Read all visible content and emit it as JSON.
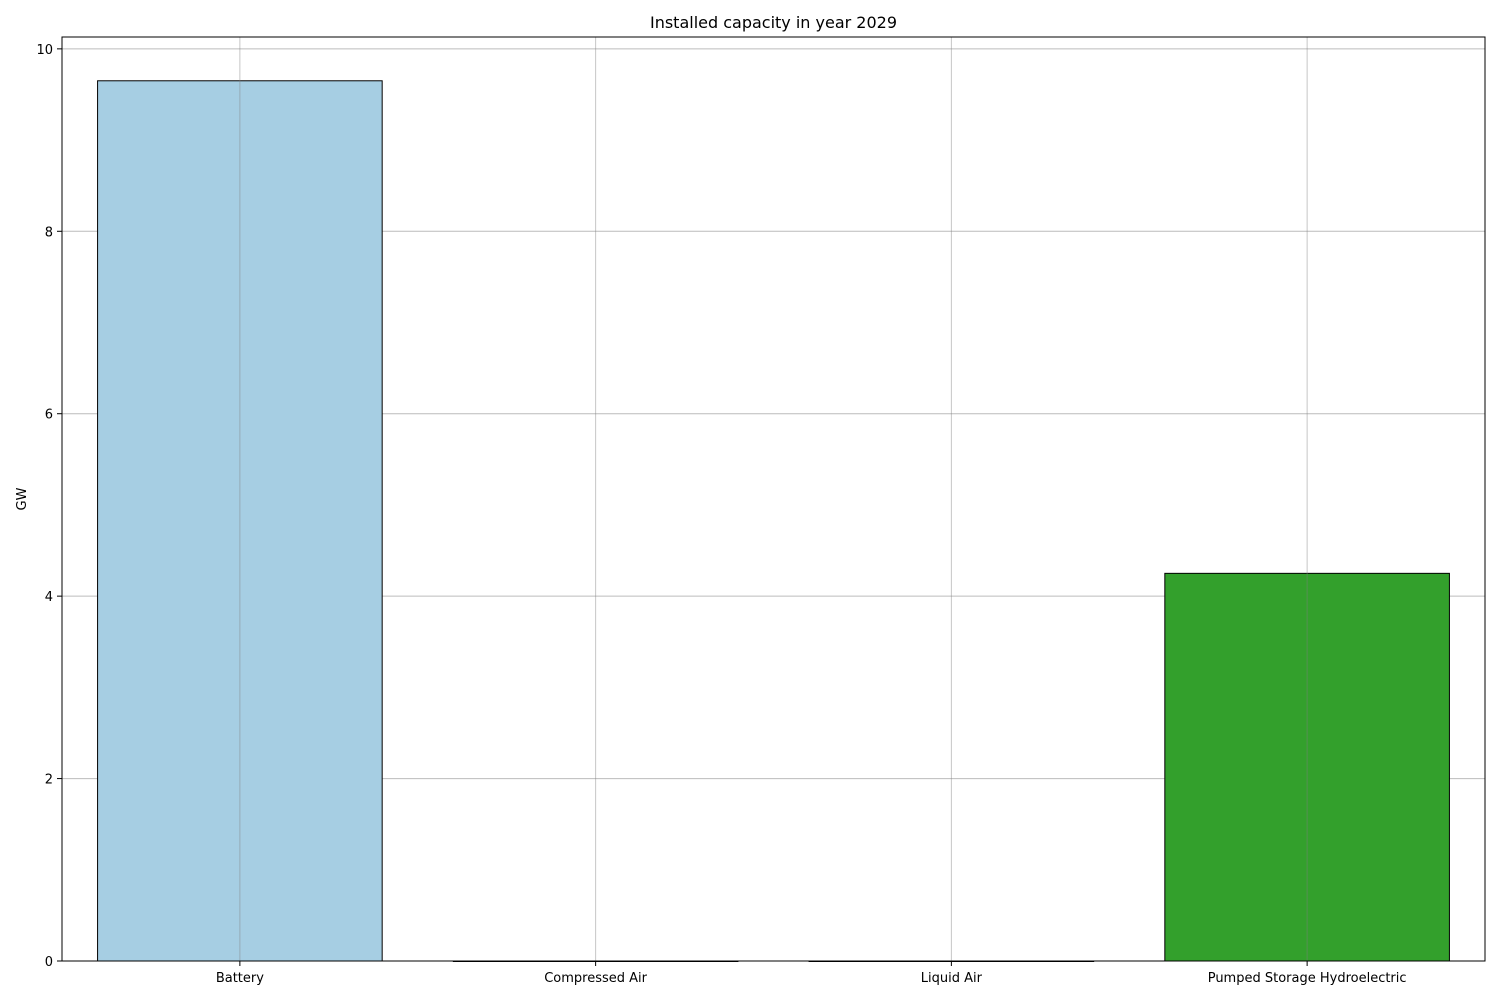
{
  "chart_data": {
    "type": "bar",
    "title": "Installed capacity in year 2029",
    "xlabel": "",
    "ylabel": "GW",
    "categories": [
      "Battery",
      "Compressed Air",
      "Liquid Air",
      "Pumped Storage Hydroelectric"
    ],
    "values": [
      9.65,
      0,
      0,
      4.25
    ],
    "colors": [
      "#a6cee3",
      "#1f78b4",
      "#b2df8a",
      "#33a02c"
    ],
    "ylim": [
      0,
      10.13
    ],
    "yticks": [
      0,
      2,
      4,
      6,
      8,
      10
    ],
    "grid": true,
    "legend": "none"
  }
}
